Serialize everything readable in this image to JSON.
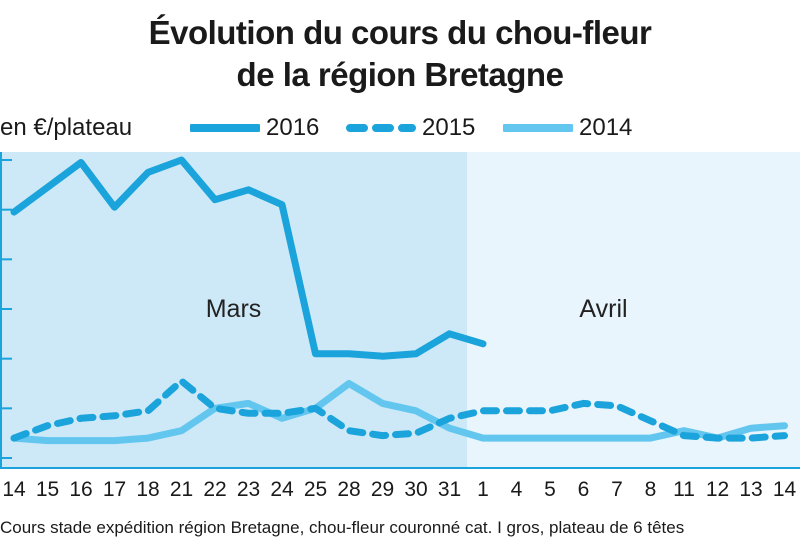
{
  "chart_data": {
    "type": "line",
    "title_line1": "Évolution du cours du chou-fleur",
    "title_line2": "de la région Bretagne",
    "ylabel": "en €/plateau",
    "xlabel": "",
    "footer": "Cours stade expédition région Bretagne, chou-fleur couronné cat. I gros, plateau de 6 têtes",
    "period_labels": [
      "Mars",
      "Avril"
    ],
    "categories": [
      "14",
      "15",
      "16",
      "17",
      "18",
      "21",
      "22",
      "23",
      "24",
      "25",
      "28",
      "29",
      "30",
      "31",
      "1",
      "4",
      "5",
      "6",
      "7",
      "8",
      "11",
      "12",
      "13",
      "14"
    ],
    "ylim": [
      0,
      12
    ],
    "grid": false,
    "legend_position": "top",
    "series": [
      {
        "name": "2016",
        "style": "solid",
        "color": "#1ba3dc",
        "values": [
          9.9,
          10.9,
          11.9,
          10.1,
          11.5,
          12.0,
          10.4,
          10.8,
          10.2,
          4.2,
          4.2,
          4.1,
          4.2,
          5.0,
          4.6,
          null,
          null,
          null,
          null,
          null,
          null,
          null,
          null,
          null
        ]
      },
      {
        "name": "2015",
        "style": "dashed",
        "color": "#1ba3dc",
        "values": [
          0.8,
          1.3,
          1.6,
          1.7,
          1.9,
          3.1,
          2.0,
          1.8,
          1.8,
          2.0,
          1.1,
          0.9,
          1.0,
          1.6,
          1.9,
          1.9,
          1.9,
          2.2,
          2.1,
          1.5,
          0.9,
          0.8,
          0.8,
          0.9
        ]
      },
      {
        "name": "2014",
        "style": "solid",
        "color": "#63c6ef",
        "values": [
          0.8,
          0.7,
          0.7,
          0.7,
          0.8,
          1.1,
          2.0,
          2.2,
          1.6,
          2.0,
          3.0,
          2.2,
          1.9,
          1.2,
          0.8,
          0.8,
          0.8,
          0.8,
          0.8,
          0.8,
          1.1,
          0.8,
          1.2,
          1.3
        ]
      }
    ],
    "colors": {
      "march_band": "#cde9f7",
      "april_band": "#e9f5fc",
      "axis": "#1ba3dc"
    }
  }
}
